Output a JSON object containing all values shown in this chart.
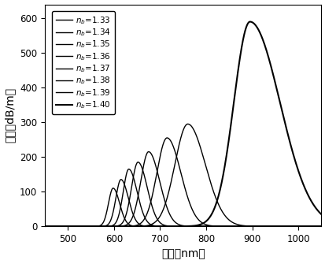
{
  "xlabel": "波长（nm）",
  "ylabel": "损耗（dB/m）",
  "xlim": [
    450,
    1050
  ],
  "ylim": [
    0,
    640
  ],
  "xticks": [
    500,
    600,
    700,
    800,
    900,
    1000
  ],
  "yticks": [
    0,
    100,
    200,
    300,
    400,
    500,
    600
  ],
  "peaks": [
    598,
    615,
    632,
    652,
    675,
    715,
    760,
    895
  ],
  "amplitudes": [
    110,
    135,
    165,
    185,
    215,
    255,
    295,
    590
  ],
  "widths_left": [
    10,
    11,
    12,
    14,
    17,
    22,
    28,
    35
  ],
  "widths_right": [
    14,
    16,
    18,
    20,
    24,
    30,
    38,
    65
  ],
  "line_colors": [
    "#000000",
    "#000000",
    "#000000",
    "#000000",
    "#000000",
    "#000000",
    "#000000",
    "#000000"
  ],
  "linewidths": [
    1.0,
    1.0,
    1.0,
    1.0,
    1.0,
    1.0,
    1.0,
    1.5
  ],
  "background_color": "#ffffff",
  "legend_fontsize": 7.5,
  "axis_fontsize": 10,
  "tick_fontsize": 8.5
}
